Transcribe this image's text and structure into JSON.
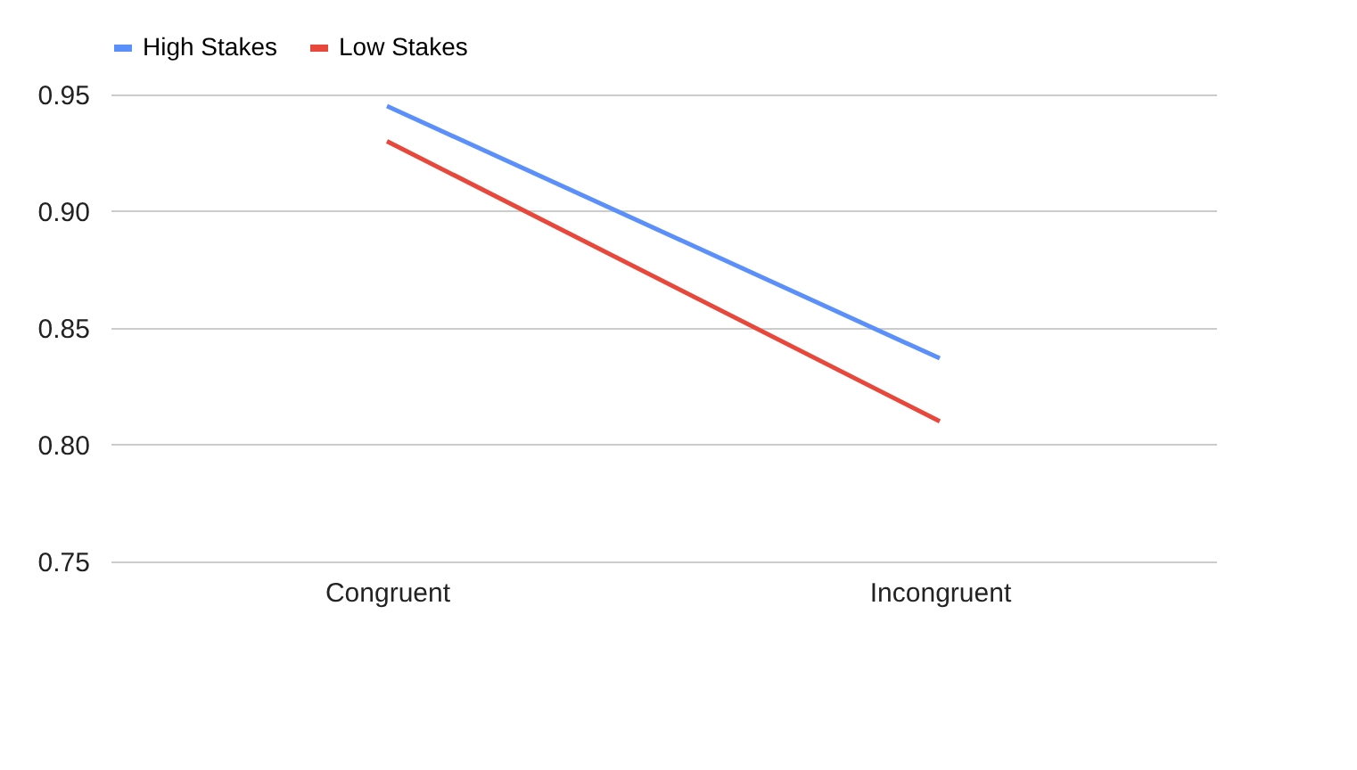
{
  "chart_data": {
    "type": "line",
    "categories": [
      "Congruent",
      "Incongruent"
    ],
    "series": [
      {
        "name": "High Stakes",
        "color": "#5b8ff9",
        "values": [
          0.945,
          0.837
        ]
      },
      {
        "name": "Low Stakes",
        "color": "#e8473b",
        "values": [
          0.93,
          0.81
        ]
      }
    ],
    "ylim": [
      0.75,
      0.95
    ],
    "yticks": [
      {
        "value": 0.75,
        "label": "0.75"
      },
      {
        "value": 0.8,
        "label": "0.80"
      },
      {
        "value": 0.85,
        "label": "0.85"
      },
      {
        "value": 0.9,
        "label": "0.90"
      },
      {
        "value": 0.95,
        "label": "0.95"
      }
    ],
    "grid": "y",
    "legend": "top",
    "marker": "none",
    "line_style": "solid"
  }
}
